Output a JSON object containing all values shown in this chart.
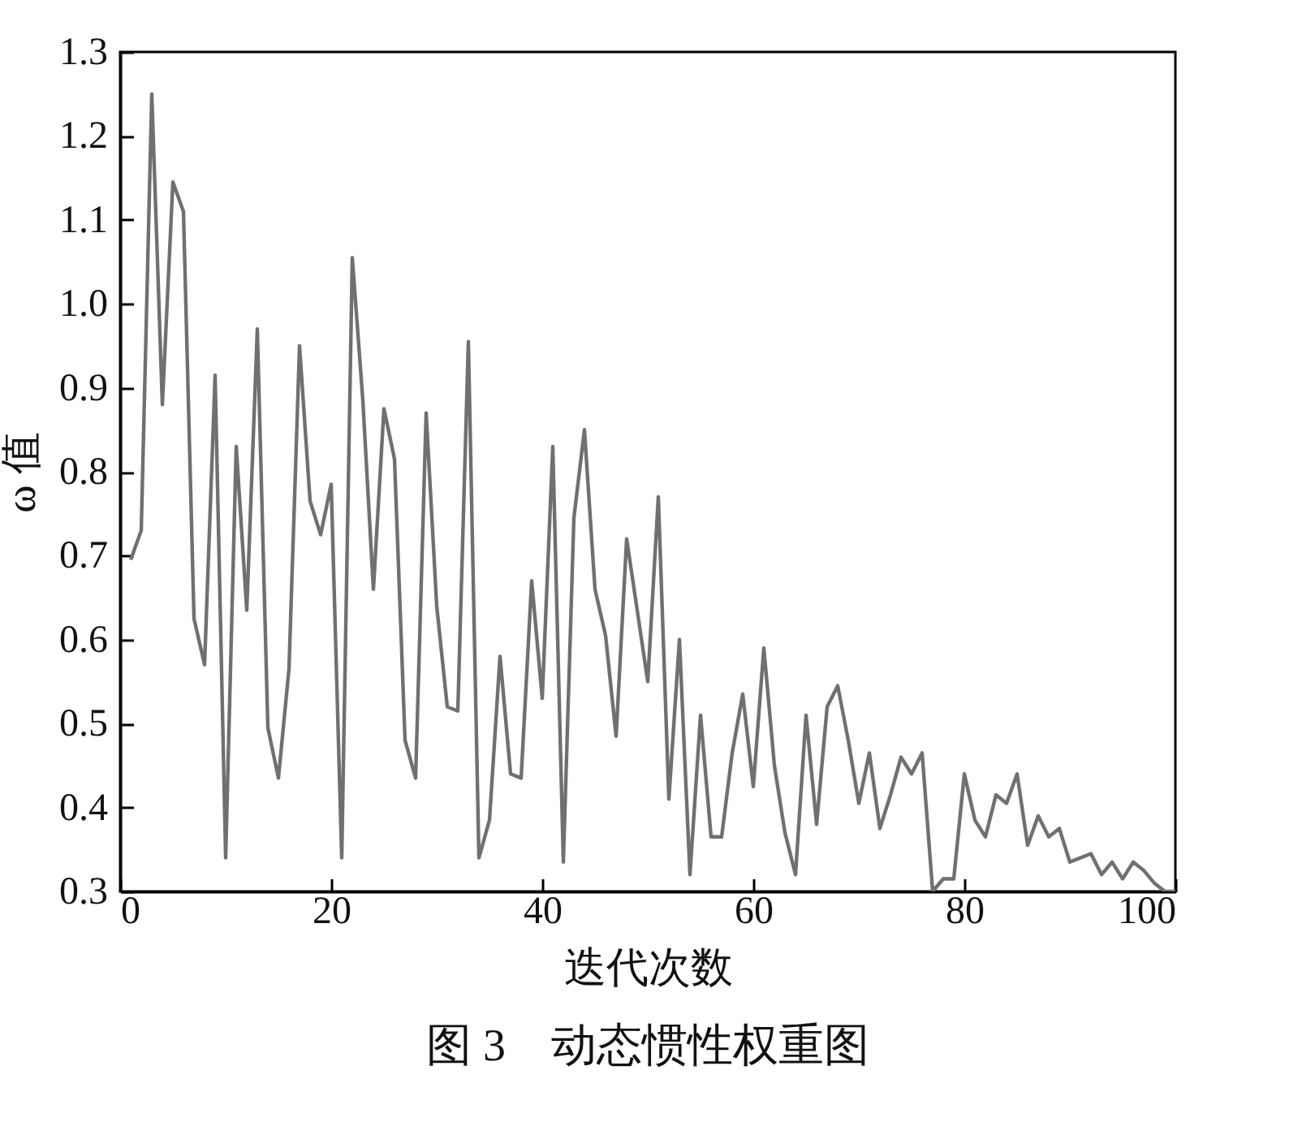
{
  "chart_data": {
    "type": "line",
    "xlabel": "迭代次数",
    "ylabel": "ω 值",
    "annotations": [
      "图 3　动态惯性权重图"
    ],
    "x": [
      1,
      2,
      3,
      4,
      5,
      6,
      7,
      8,
      9,
      10,
      11,
      12,
      13,
      14,
      15,
      16,
      17,
      18,
      19,
      20,
      21,
      22,
      23,
      24,
      25,
      26,
      27,
      28,
      29,
      30,
      31,
      32,
      33,
      34,
      35,
      36,
      37,
      38,
      39,
      40,
      41,
      42,
      43,
      44,
      45,
      46,
      47,
      48,
      49,
      50,
      51,
      52,
      53,
      54,
      55,
      56,
      57,
      58,
      59,
      60,
      61,
      62,
      63,
      64,
      65,
      66,
      67,
      68,
      69,
      70,
      71,
      72,
      73,
      74,
      75,
      76,
      77,
      78,
      79,
      80,
      81,
      82,
      83,
      84,
      85,
      86,
      87,
      88,
      89,
      90,
      91,
      92,
      93,
      94,
      95,
      96,
      97,
      98,
      99,
      100
    ],
    "values": [
      0.695,
      0.73,
      1.25,
      0.88,
      1.145,
      1.11,
      0.625,
      0.57,
      0.915,
      0.34,
      0.83,
      0.635,
      0.97,
      0.495,
      0.435,
      0.565,
      0.95,
      0.765,
      0.725,
      0.785,
      0.34,
      1.055,
      0.885,
      0.66,
      0.875,
      0.815,
      0.48,
      0.435,
      0.87,
      0.64,
      0.52,
      0.515,
      0.955,
      0.34,
      0.385,
      0.58,
      0.44,
      0.435,
      0.67,
      0.53,
      0.83,
      0.335,
      0.745,
      0.85,
      0.66,
      0.605,
      0.485,
      0.72,
      0.635,
      0.55,
      0.77,
      0.41,
      0.6,
      0.32,
      0.51,
      0.365,
      0.365,
      0.465,
      0.535,
      0.425,
      0.59,
      0.45,
      0.37,
      0.32,
      0.51,
      0.38,
      0.52,
      0.545,
      0.48,
      0.405,
      0.465,
      0.375,
      0.415,
      0.46,
      0.44,
      0.465,
      0.3,
      0.315,
      0.315,
      0.44,
      0.385,
      0.365,
      0.415,
      0.405,
      0.44,
      0.355,
      0.39,
      0.365,
      0.375,
      0.335,
      0.34,
      0.345,
      0.32,
      0.335,
      0.315,
      0.335,
      0.325,
      0.31,
      0.3,
      0.3
    ],
    "color": "#707070",
    "line_style": "solid",
    "marker": "none",
    "grid": false,
    "xlim": [
      0,
      100
    ],
    "xticks": [
      0,
      20,
      40,
      60,
      80,
      100
    ],
    "ylim": [
      0.3,
      1.3
    ],
    "yticks": [
      0.3,
      0.4,
      0.5,
      0.6,
      0.7,
      0.8,
      0.9,
      {
        "value": 1,
        "label": "1.0"
      },
      1.1,
      1.2,
      1.3
    ]
  }
}
